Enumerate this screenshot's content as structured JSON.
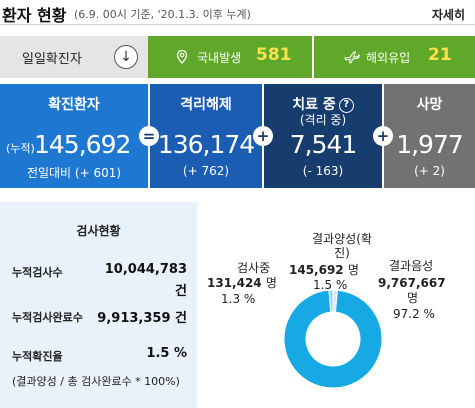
{
  "header": {
    "title": "환자 현황",
    "subtitle": "(6.9. 00시 기준, '20.1.3. 이후 누계)",
    "more": "자세히"
  },
  "daily": {
    "label": "일일확진자",
    "toggle_icon": "↓",
    "domestic_label": "국내발생",
    "domestic_value": "581",
    "overseas_label": "해외유입",
    "overseas_value": "21",
    "domestic_icon": "location-pin-icon",
    "overseas_icon": "airplane-icon"
  },
  "summary": {
    "confirmed": {
      "title": "확진환자",
      "cum_label": "(누적)",
      "value": "145,692",
      "delta": "전일대비 (+ 601)"
    },
    "released": {
      "title": "격리해제",
      "value": "136,174",
      "delta": "(+ 762)"
    },
    "treating": {
      "title": "치료 중",
      "subtitle": "(격리 중)",
      "help_icon": "?",
      "value": "7,541",
      "delta": "(- 163)"
    },
    "deaths": {
      "title": "사망",
      "value": "1,977",
      "delta": "(+ 2)"
    },
    "operators": [
      "=",
      "+",
      "+"
    ]
  },
  "tests": {
    "title": "검사현황",
    "rows": [
      {
        "label": "누적검사수",
        "value": "10,044,783",
        "unit": "건"
      },
      {
        "label": "누적검사완료수",
        "value": "9,913,359",
        "unit": "건"
      },
      {
        "label": "누적확진율",
        "value": "1.5 %"
      }
    ],
    "note": "(결과양성 / 총 검사완료수 * 100%)"
  },
  "chart_data": {
    "type": "pie",
    "categories": [
      "검사중",
      "결과양성(확진)",
      "결과음성"
    ],
    "values": [
      131424,
      145692,
      9767667
    ],
    "percent": [
      1.3,
      1.5,
      97.2
    ],
    "unit": "명",
    "labels": [
      {
        "name": "검사중",
        "value": "131,424",
        "unit": "명",
        "pct": "1.3 %"
      },
      {
        "name": "결과양성(확진)",
        "value": "145,692",
        "unit": "명",
        "pct": "1.5 %"
      },
      {
        "name": "결과음성",
        "value": "9,767,667",
        "unit": "명",
        "pct": "97.2 %"
      }
    ],
    "colors": {
      "pending": "#9ad4ef",
      "positive": "#cfeaf7",
      "negative": "#17a9e4"
    }
  },
  "colors": {
    "green": "#5fa82a",
    "yellow_value": "#ffe14d",
    "confirmed_blue": "#1e78d2",
    "released_blue": "#1a5db3",
    "treating_navy": "#173c6e",
    "deaths_gray": "#727272",
    "tests_bg": "#e9f2fb"
  }
}
